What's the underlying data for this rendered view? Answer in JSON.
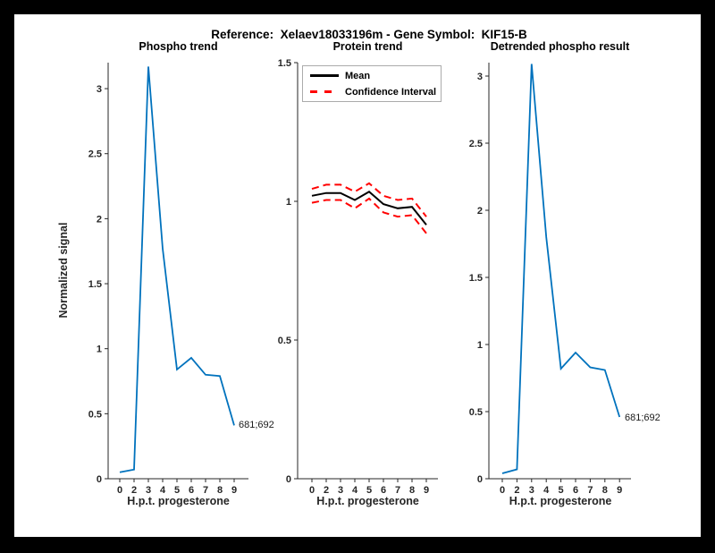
{
  "header": {
    "title": "Reference:  Xelaev18033196m - Gene Symbol:  KIF15-B"
  },
  "colors": {
    "blue": "#0072BD",
    "red": "#FF0000",
    "black": "#000000",
    "axis": "#262626",
    "frame": "#000000",
    "canvas": "#FFFFFF"
  },
  "chart_data": [
    {
      "type": "line",
      "title": "Phospho trend",
      "xlabel": "H.p.t. progesterone",
      "ylabel": "Normalized signal",
      "categories": [
        "0",
        "2",
        "3",
        "4",
        "5",
        "6",
        "7",
        "8",
        "9"
      ],
      "x_values": [
        0,
        2,
        3,
        4,
        5,
        6,
        7,
        8,
        9
      ],
      "ylim": [
        0,
        3.2
      ],
      "yticks": [
        0,
        0.5,
        1,
        1.5,
        2,
        2.5,
        3
      ],
      "grid": false,
      "series": [
        {
          "name": "phospho-signal",
          "color": "#0072BD",
          "style": "solid",
          "values": [
            0.05,
            0.07,
            3.17,
            1.77,
            0.84,
            0.93,
            0.8,
            0.79,
            0.41
          ]
        }
      ],
      "annotation": {
        "text": "681;692",
        "x_index": 8,
        "value": 0.41
      }
    },
    {
      "type": "line",
      "title": "Protein trend",
      "xlabel": "H.p.t. progesterone",
      "ylabel": "",
      "categories": [
        "0",
        "2",
        "3",
        "4",
        "5",
        "6",
        "7",
        "8",
        "9"
      ],
      "x_values": [
        0,
        2,
        3,
        4,
        5,
        6,
        7,
        8,
        9
      ],
      "ylim": [
        0,
        1.5
      ],
      "yticks": [
        0,
        0.5,
        1,
        1.5
      ],
      "grid": false,
      "legend": {
        "position": "top-left",
        "entries": [
          {
            "label": "Mean",
            "color": "#000000",
            "dash": false
          },
          {
            "label": "Confidence Interval",
            "color": "#FF0000",
            "dash": true
          }
        ]
      },
      "series": [
        {
          "name": "mean",
          "color": "#000000",
          "style": "solid",
          "values": [
            1.02,
            1.03,
            1.03,
            1.005,
            1.035,
            0.99,
            0.975,
            0.98,
            0.915
          ]
        },
        {
          "name": "ci-upper",
          "color": "#FF0000",
          "style": "dashed",
          "values": [
            1.045,
            1.06,
            1.06,
            1.035,
            1.065,
            1.02,
            1.005,
            1.01,
            0.945
          ]
        },
        {
          "name": "ci-lower",
          "color": "#FF0000",
          "style": "dashed",
          "values": [
            0.995,
            1.005,
            1.005,
            0.975,
            1.01,
            0.96,
            0.945,
            0.95,
            0.885
          ]
        }
      ]
    },
    {
      "type": "line",
      "title": "Detrended phospho result",
      "xlabel": "H.p.t. progesterone",
      "ylabel": "",
      "categories": [
        "0",
        "2",
        "3",
        "4",
        "5",
        "6",
        "7",
        "8",
        "9"
      ],
      "x_values": [
        0,
        2,
        3,
        4,
        5,
        6,
        7,
        8,
        9
      ],
      "ylim": [
        0,
        3.1
      ],
      "yticks": [
        0,
        0.5,
        1,
        1.5,
        2,
        2.5,
        3
      ],
      "grid": false,
      "series": [
        {
          "name": "detrended-phospho",
          "color": "#0072BD",
          "style": "solid",
          "values": [
            0.04,
            0.07,
            3.09,
            1.8,
            0.82,
            0.94,
            0.83,
            0.81,
            0.46
          ]
        }
      ],
      "annotation": {
        "text": "681;692",
        "x_index": 8,
        "value": 0.46
      }
    }
  ]
}
